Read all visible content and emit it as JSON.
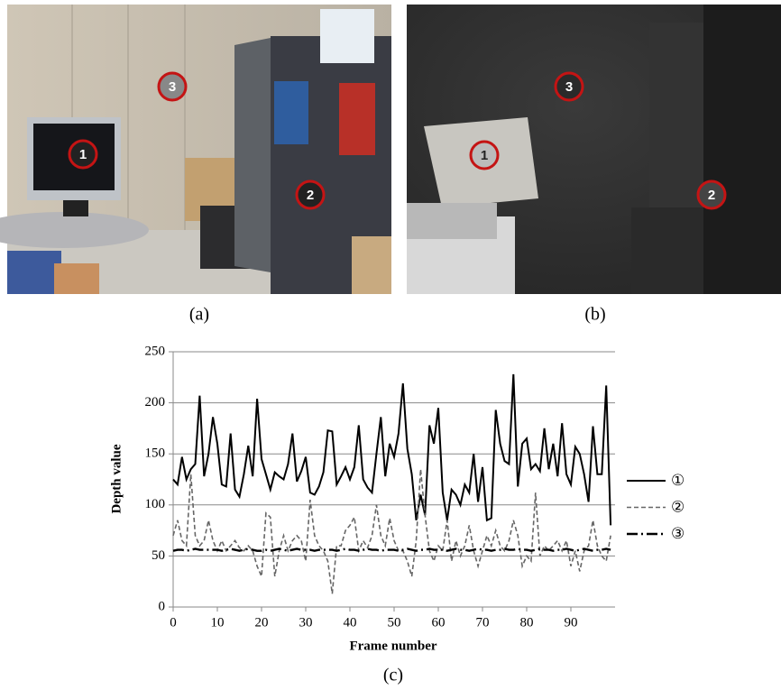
{
  "panels": [
    {
      "caption": "(a)",
      "markers": [
        "1",
        "3",
        "2"
      ]
    },
    {
      "caption": "(b)",
      "markers": [
        "1",
        "3",
        "2"
      ]
    }
  ],
  "chart_caption": "(c)",
  "chart_data": {
    "type": "line",
    "x_label": "Frame number",
    "y_label": "Depth value",
    "xlim": [
      0,
      100
    ],
    "xticks": [
      0,
      10,
      20,
      30,
      40,
      50,
      60,
      70,
      80,
      90
    ],
    "ylim": [
      0,
      250
    ],
    "yticks": [
      0,
      50,
      100,
      150,
      200,
      250
    ],
    "grid": true,
    "legend": "right",
    "x": [
      0,
      1,
      2,
      3,
      4,
      5,
      6,
      7,
      8,
      9,
      10,
      11,
      12,
      13,
      14,
      15,
      16,
      17,
      18,
      19,
      20,
      21,
      22,
      23,
      24,
      25,
      26,
      27,
      28,
      29,
      30,
      31,
      32,
      33,
      34,
      35,
      36,
      37,
      38,
      39,
      40,
      41,
      42,
      43,
      44,
      45,
      46,
      47,
      48,
      49,
      50,
      51,
      52,
      53,
      54,
      55,
      56,
      57,
      58,
      59,
      60,
      61,
      62,
      63,
      64,
      65,
      66,
      67,
      68,
      69,
      70,
      71,
      72,
      73,
      74,
      75,
      76,
      77,
      78,
      79,
      80,
      81,
      82,
      83,
      84,
      85,
      86,
      87,
      88,
      89,
      90,
      91,
      92,
      93,
      94,
      95,
      96,
      97,
      98,
      99
    ],
    "series": [
      {
        "name": "①",
        "color": "#000000",
        "line_style": "solid",
        "values": [
          125,
          120,
          147,
          125,
          135,
          140,
          207,
          128,
          150,
          186,
          160,
          120,
          118,
          170,
          115,
          108,
          130,
          158,
          128,
          204,
          145,
          130,
          115,
          132,
          128,
          125,
          140,
          170,
          123,
          133,
          147,
          112,
          110,
          118,
          132,
          173,
          172,
          120,
          128,
          137,
          125,
          137,
          178,
          125,
          117,
          112,
          150,
          186,
          128,
          160,
          147,
          170,
          219,
          155,
          130,
          85,
          110,
          90,
          178,
          160,
          195,
          112,
          85,
          115,
          110,
          100,
          120,
          112,
          150,
          103,
          137,
          85,
          87,
          193,
          160,
          143,
          140,
          228,
          118,
          160,
          165,
          135,
          140,
          133,
          175,
          135,
          160,
          128,
          180,
          130,
          120,
          157,
          150,
          130,
          103,
          177,
          130,
          130,
          217,
          80
        ]
      },
      {
        "name": "②",
        "color": "#666666",
        "line_style": "dashed",
        "values": [
          70,
          85,
          65,
          60,
          130,
          70,
          60,
          65,
          85,
          65,
          55,
          65,
          55,
          60,
          65,
          58,
          55,
          60,
          55,
          40,
          30,
          92,
          88,
          30,
          55,
          70,
          55,
          65,
          70,
          65,
          45,
          105,
          70,
          60,
          55,
          45,
          13,
          60,
          60,
          75,
          80,
          88,
          55,
          65,
          58,
          70,
          100,
          70,
          60,
          87,
          65,
          55,
          55,
          45,
          30,
          65,
          135,
          90,
          55,
          45,
          60,
          55,
          85,
          45,
          65,
          50,
          60,
          80,
          55,
          40,
          55,
          70,
          60,
          75,
          60,
          55,
          65,
          85,
          70,
          40,
          50,
          45,
          112,
          50,
          60,
          55,
          60,
          65,
          55,
          65,
          40,
          55,
          35,
          55,
          60,
          85,
          60,
          50,
          45,
          70
        ]
      },
      {
        "name": "③",
        "color": "#000000",
        "line_style": "dashdot",
        "values": [
          55,
          56,
          56,
          55,
          56,
          57,
          56,
          56,
          56,
          56,
          56,
          55,
          56,
          57,
          56,
          55,
          56,
          57,
          56,
          55,
          55,
          56,
          55,
          56,
          57,
          56,
          55,
          56,
          57,
          56,
          56,
          56,
          55,
          56,
          56,
          56,
          56,
          55,
          56,
          57,
          56,
          56,
          55,
          56,
          57,
          56,
          56,
          55,
          56,
          56,
          56,
          55,
          56,
          57,
          56,
          55,
          56,
          56,
          57,
          56,
          56,
          56,
          55,
          56,
          57,
          56,
          56,
          55,
          56,
          57,
          56,
          56,
          55,
          56,
          56,
          57,
          56,
          56,
          57,
          56,
          56,
          55,
          56,
          57,
          56,
          56,
          55,
          56,
          56,
          57,
          56,
          55,
          56,
          57,
          56,
          55,
          56,
          56,
          57,
          56
        ]
      }
    ]
  }
}
